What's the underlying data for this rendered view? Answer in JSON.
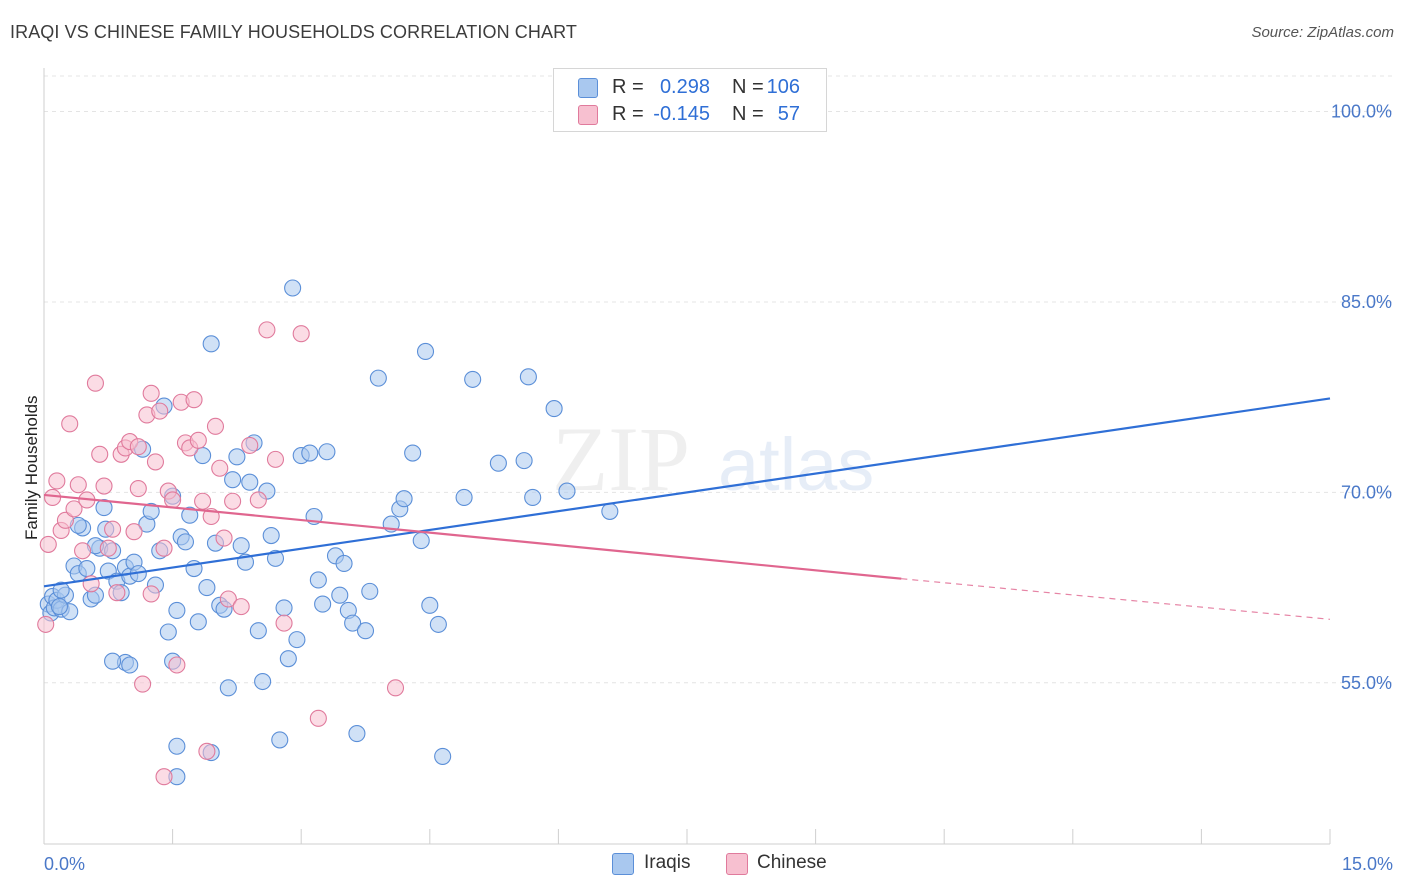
{
  "header": {
    "title": "IRAQI VS CHINESE FAMILY HOUSEHOLDS CORRELATION CHART",
    "source": "Source: ZipAtlas.com"
  },
  "legend": {
    "r_label": "R =",
    "n_label": "N =",
    "rows": [
      {
        "name": "Iraqis",
        "r": "0.298",
        "n": "106",
        "color": "#a9c8ef",
        "border": "#5b8fd8"
      },
      {
        "name": "Chinese",
        "r": "-0.145",
        "n": "57",
        "color": "#f7c0d0",
        "border": "#e07a9c"
      }
    ]
  },
  "watermark": {
    "zip": "ZIP",
    "atlas": "atlas"
  },
  "chart_data": {
    "type": "scatter",
    "title": "IRAQI VS CHINESE FAMILY HOUSEHOLDS CORRELATION CHART",
    "xlabel": "",
    "ylabel": "Family Households",
    "xlim": [
      0,
      15
    ],
    "ylim": [
      42.3,
      102.8
    ],
    "x_tick_labels": [
      "0.0%",
      "15.0%"
    ],
    "y_ticks": [
      55,
      70,
      85,
      100
    ],
    "y_tick_labels": [
      "55.0%",
      "70.0%",
      "85.0%",
      "100.0%"
    ],
    "grid": true,
    "series": [
      {
        "name": "Iraqis",
        "color": "#5b8fd8",
        "fill": "#a9c8ef",
        "trend": {
          "x": [
            0,
            15
          ],
          "y": [
            62.6,
            77.4
          ],
          "color": "#2f6fd6"
        },
        "points": [
          [
            0.05,
            61.2
          ],
          [
            0.08,
            60.5
          ],
          [
            0.1,
            61.8
          ],
          [
            0.12,
            60.9
          ],
          [
            0.15,
            61.5
          ],
          [
            0.2,
            60.8
          ],
          [
            0.25,
            61.9
          ],
          [
            0.3,
            60.6
          ],
          [
            0.2,
            62.3
          ],
          [
            0.18,
            61.0
          ],
          [
            0.35,
            64.2
          ],
          [
            0.4,
            63.6
          ],
          [
            0.45,
            67.2
          ],
          [
            0.5,
            64.0
          ],
          [
            0.55,
            61.6
          ],
          [
            0.6,
            61.9
          ],
          [
            0.65,
            65.6
          ],
          [
            0.7,
            68.8
          ],
          [
            0.72,
            67.1
          ],
          [
            0.75,
            63.8
          ],
          [
            0.8,
            65.4
          ],
          [
            0.85,
            63.0
          ],
          [
            0.9,
            62.1
          ],
          [
            0.95,
            64.1
          ],
          [
            1.0,
            63.4
          ],
          [
            1.05,
            64.5
          ],
          [
            1.1,
            63.6
          ],
          [
            1.15,
            73.4
          ],
          [
            1.2,
            67.5
          ],
          [
            1.25,
            68.5
          ],
          [
            1.3,
            62.7
          ],
          [
            1.35,
            65.4
          ],
          [
            1.4,
            76.8
          ],
          [
            1.45,
            59.0
          ],
          [
            1.5,
            69.7
          ],
          [
            1.55,
            60.7
          ],
          [
            1.6,
            66.5
          ],
          [
            1.65,
            66.1
          ],
          [
            1.7,
            68.2
          ],
          [
            1.75,
            64.0
          ],
          [
            1.8,
            59.8
          ],
          [
            1.85,
            72.9
          ],
          [
            1.9,
            62.5
          ],
          [
            1.95,
            81.7
          ],
          [
            2.0,
            66.0
          ],
          [
            2.05,
            61.1
          ],
          [
            2.1,
            60.8
          ],
          [
            2.15,
            54.6
          ],
          [
            2.2,
            71.0
          ],
          [
            2.25,
            72.8
          ],
          [
            2.3,
            65.8
          ],
          [
            2.35,
            64.5
          ],
          [
            2.4,
            70.8
          ],
          [
            2.45,
            73.9
          ],
          [
            2.5,
            59.1
          ],
          [
            2.55,
            55.1
          ],
          [
            2.6,
            70.1
          ],
          [
            2.65,
            66.6
          ],
          [
            2.7,
            64.8
          ],
          [
            2.75,
            50.5
          ],
          [
            2.8,
            60.9
          ],
          [
            2.85,
            56.9
          ],
          [
            2.9,
            86.1
          ],
          [
            2.95,
            58.4
          ],
          [
            3.0,
            72.9
          ],
          [
            3.1,
            73.1
          ],
          [
            3.15,
            68.1
          ],
          [
            3.2,
            63.1
          ],
          [
            3.25,
            61.2
          ],
          [
            3.3,
            73.2
          ],
          [
            3.4,
            65.0
          ],
          [
            3.45,
            61.9
          ],
          [
            3.5,
            64.4
          ],
          [
            3.55,
            60.7
          ],
          [
            3.6,
            59.7
          ],
          [
            3.65,
            51.0
          ],
          [
            3.75,
            59.1
          ],
          [
            3.8,
            62.2
          ],
          [
            3.9,
            79.0
          ],
          [
            4.05,
            67.5
          ],
          [
            4.15,
            68.7
          ],
          [
            4.2,
            69.5
          ],
          [
            4.3,
            73.1
          ],
          [
            4.4,
            66.2
          ],
          [
            4.45,
            81.1
          ],
          [
            4.5,
            61.1
          ],
          [
            4.6,
            59.6
          ],
          [
            4.65,
            49.2
          ],
          [
            4.9,
            69.6
          ],
          [
            5.0,
            78.9
          ],
          [
            5.3,
            72.3
          ],
          [
            5.6,
            72.5
          ],
          [
            5.65,
            79.1
          ],
          [
            5.7,
            69.6
          ],
          [
            5.95,
            76.6
          ],
          [
            6.1,
            70.1
          ],
          [
            6.6,
            68.5
          ],
          [
            1.55,
            50.0
          ],
          [
            1.55,
            47.6
          ],
          [
            0.95,
            56.6
          ],
          [
            0.8,
            56.7
          ],
          [
            1.0,
            56.4
          ],
          [
            1.5,
            56.7
          ],
          [
            1.95,
            49.5
          ],
          [
            0.4,
            67.4
          ],
          [
            0.6,
            65.8
          ]
        ]
      },
      {
        "name": "Chinese",
        "color": "#e07a9c",
        "fill": "#f7c0d0",
        "trend": {
          "x": [
            0,
            10.0
          ],
          "y": [
            69.8,
            63.2
          ],
          "color": "#e0668f",
          "dashed_to": [
            15,
            60.0
          ]
        },
        "points": [
          [
            0.02,
            59.6
          ],
          [
            0.05,
            65.9
          ],
          [
            0.1,
            69.6
          ],
          [
            0.15,
            70.9
          ],
          [
            0.2,
            67.0
          ],
          [
            0.25,
            67.8
          ],
          [
            0.3,
            75.4
          ],
          [
            0.35,
            68.7
          ],
          [
            0.4,
            70.6
          ],
          [
            0.45,
            65.4
          ],
          [
            0.5,
            69.4
          ],
          [
            0.55,
            62.8
          ],
          [
            0.6,
            78.6
          ],
          [
            0.65,
            73.0
          ],
          [
            0.7,
            70.5
          ],
          [
            0.75,
            65.6
          ],
          [
            0.8,
            67.1
          ],
          [
            0.85,
            62.1
          ],
          [
            0.9,
            73.0
          ],
          [
            0.95,
            73.5
          ],
          [
            1.0,
            74.0
          ],
          [
            1.05,
            66.9
          ],
          [
            1.1,
            73.6
          ],
          [
            1.15,
            54.9
          ],
          [
            1.2,
            76.1
          ],
          [
            1.25,
            77.8
          ],
          [
            1.3,
            72.4
          ],
          [
            1.35,
            76.4
          ],
          [
            1.4,
            47.6
          ],
          [
            1.45,
            70.1
          ],
          [
            1.5,
            69.4
          ],
          [
            1.55,
            56.4
          ],
          [
            1.6,
            77.1
          ],
          [
            1.65,
            73.9
          ],
          [
            1.7,
            73.5
          ],
          [
            1.75,
            77.3
          ],
          [
            1.8,
            74.1
          ],
          [
            1.85,
            69.3
          ],
          [
            1.9,
            49.6
          ],
          [
            1.95,
            68.1
          ],
          [
            2.0,
            75.2
          ],
          [
            2.05,
            71.9
          ],
          [
            2.1,
            66.4
          ],
          [
            2.15,
            61.6
          ],
          [
            2.2,
            69.3
          ],
          [
            2.3,
            61.0
          ],
          [
            2.4,
            73.7
          ],
          [
            2.5,
            69.4
          ],
          [
            2.6,
            82.8
          ],
          [
            2.7,
            72.6
          ],
          [
            2.8,
            59.7
          ],
          [
            3.0,
            82.5
          ],
          [
            3.2,
            52.2
          ],
          [
            4.1,
            54.6
          ],
          [
            1.25,
            62.0
          ],
          [
            1.1,
            70.3
          ],
          [
            1.4,
            65.6
          ]
        ]
      }
    ]
  }
}
